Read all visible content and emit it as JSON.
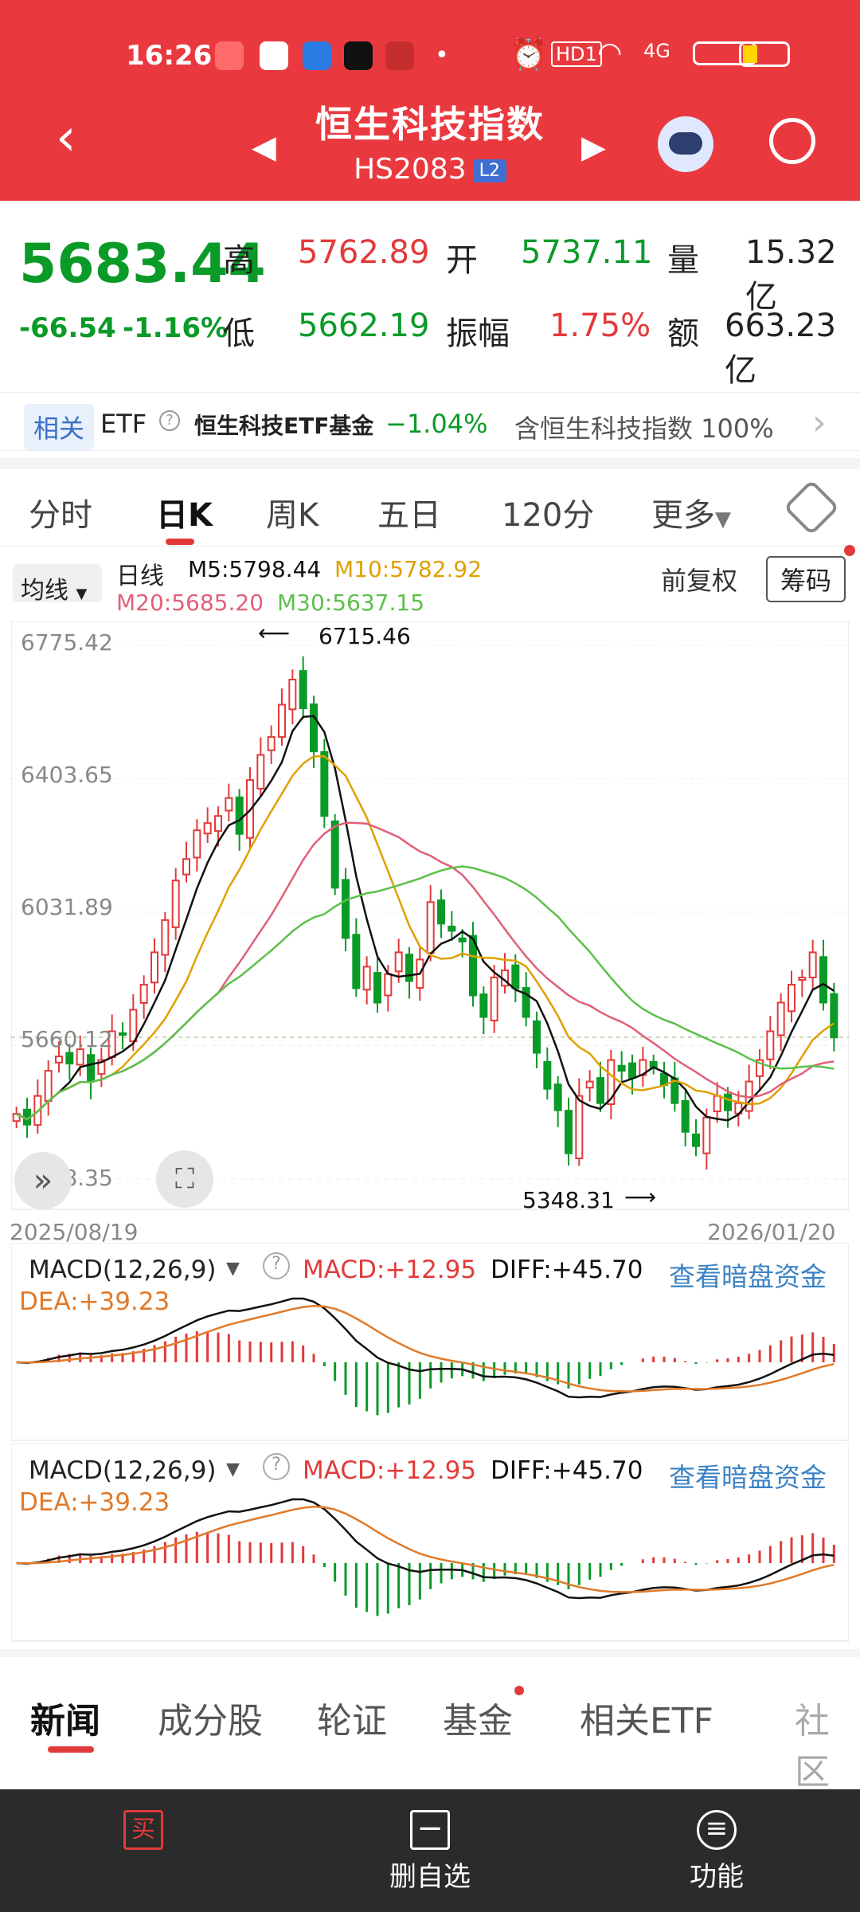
{
  "status_bar": {
    "time": "16:26",
    "network": "4G",
    "hd": "HD1"
  },
  "header": {
    "title": "恒生科技指数",
    "code": "HS2083",
    "level": "L2"
  },
  "quote": {
    "price": "5683.44",
    "change": "-66.54",
    "change_pct": "-1.16%",
    "high_label": "高",
    "high": "5762.89",
    "low_label": "低",
    "low": "5662.19",
    "open_label": "开",
    "open": "5737.11",
    "amp_label": "振幅",
    "amp": "1.75%",
    "vol_label": "量",
    "vol": "15.32亿",
    "amt_label": "额",
    "amt": "663.23亿"
  },
  "etf": {
    "tag": "相关",
    "prefix": "ETF",
    "name": "恒生科技ETF基金",
    "change": "−1.04%",
    "holds": "含恒生科技指数 100%"
  },
  "tabs": [
    {
      "label": "分时"
    },
    {
      "label": "日K"
    },
    {
      "label": "周K"
    },
    {
      "label": "五日"
    },
    {
      "label": "120分"
    },
    {
      "label": "更多"
    }
  ],
  "indicator": {
    "ma_select": "均线",
    "daily": "日线",
    "m5": "M5:5798.44",
    "m10": "M10:5782.92",
    "m20": "M20:5685.20",
    "m30": "M30:5637.15",
    "adjust": "前复权",
    "chips_button": "筹码"
  },
  "chart_data": {
    "type": "candlestick",
    "y_ticks": [
      "6775.42",
      "6403.65",
      "6031.89",
      "5660.12",
      "5288.35"
    ],
    "ylim": [
      5288.35,
      6775.42
    ],
    "x_start": "2025/08/19",
    "x_end": "2026/01/20",
    "max_label": "6715.46",
    "min_label": "5348.31",
    "close_series": [
      5470,
      5440,
      5520,
      5590,
      5630,
      5610,
      5650,
      5560,
      5620,
      5700,
      5690,
      5760,
      5830,
      5920,
      6010,
      6120,
      6180,
      6260,
      6280,
      6300,
      6350,
      6250,
      6400,
      6470,
      6520,
      6610,
      6680,
      6600,
      6480,
      6300,
      6100,
      5960,
      5820,
      5880,
      5780,
      5860,
      5920,
      5840,
      5900,
      6060,
      6000,
      5980,
      5950,
      5800,
      5740,
      5850,
      5870,
      5820,
      5740,
      5640,
      5540,
      5480,
      5360,
      5520,
      5560,
      5500,
      5620,
      5590,
      5570,
      5620,
      5600,
      5550,
      5500,
      5420,
      5380,
      5460,
      5520,
      5480,
      5500,
      5560,
      5620,
      5700,
      5780,
      5830,
      5850,
      5920,
      5780,
      5683
    ],
    "ma_names": [
      "M5",
      "M10",
      "M20",
      "M30"
    ],
    "ma_colors": [
      "#111111",
      "#e0a000",
      "#e06078",
      "#5cc04a"
    ]
  },
  "macd": {
    "label": "MACD(12,26,9)",
    "macd": "MACD:+12.95",
    "diff": "DIFF:+45.70",
    "dea": "DEA:+39.23",
    "link": "查看暗盘资金"
  },
  "bottom_tabs": [
    {
      "label": "新闻"
    },
    {
      "label": "成分股"
    },
    {
      "label": "轮证"
    },
    {
      "label": "基金"
    },
    {
      "label": "相关ETF"
    },
    {
      "label": "社区"
    }
  ],
  "bottom_bar": {
    "buy": "买",
    "watch": "删自选",
    "func": "功能"
  },
  "colors": {
    "up": "#e23a3a",
    "down": "#0a9a28",
    "header": "#e9393f"
  }
}
